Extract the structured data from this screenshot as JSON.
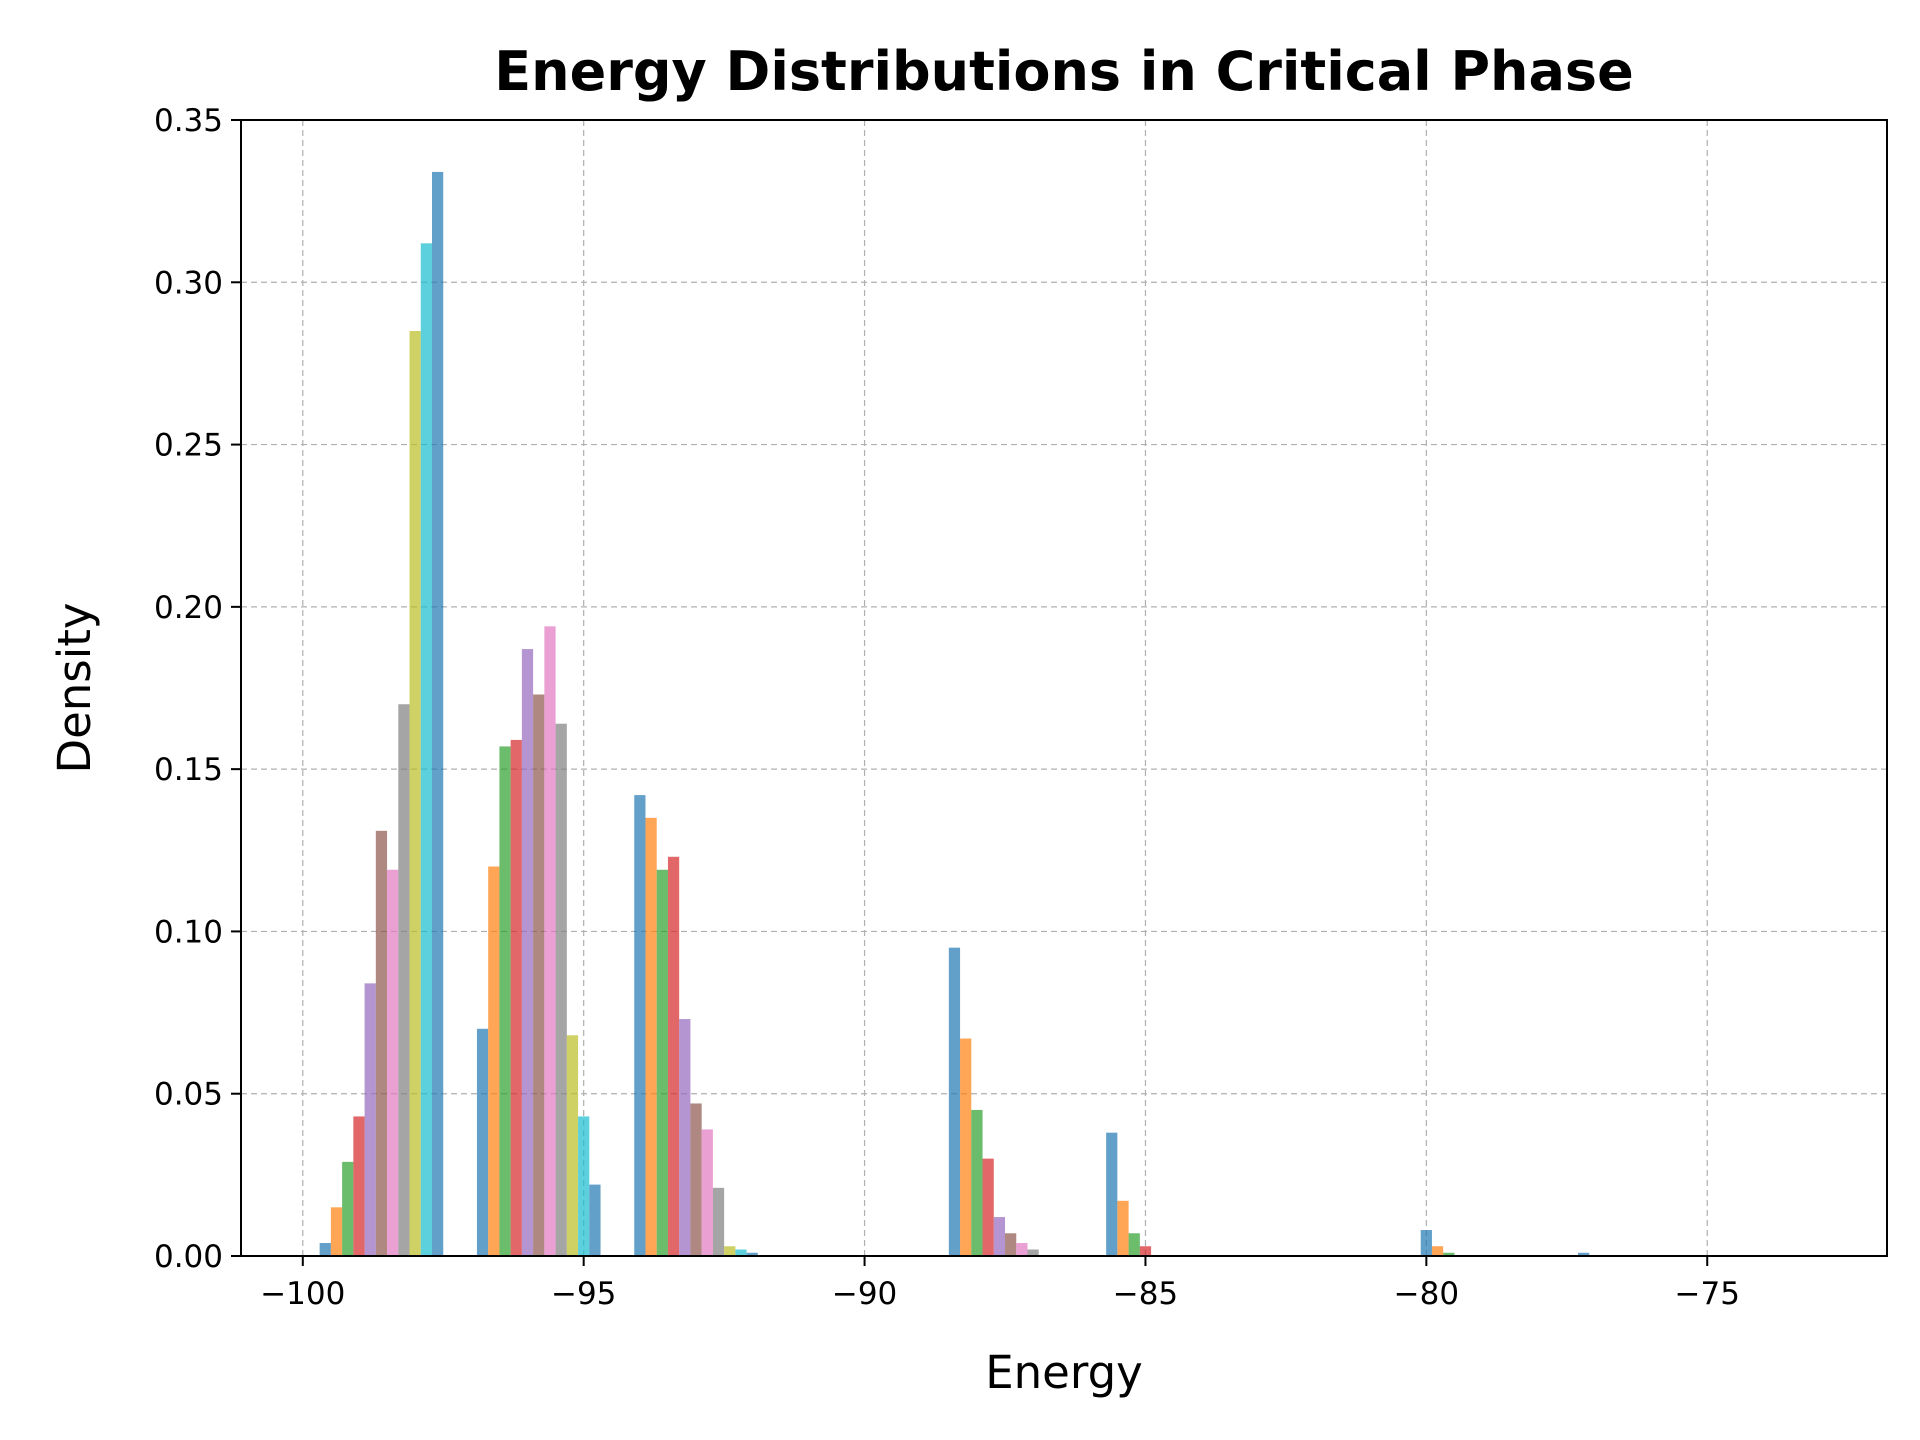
{
  "chart_data": {
    "type": "bar",
    "title": "Energy Distributions in Critical Phase",
    "xlabel": "Energy",
    "ylabel": "Density",
    "xlim": [
      -101.1,
      -71.8
    ],
    "ylim": [
      0,
      0.35
    ],
    "x_ticks": [
      -100,
      -95,
      -90,
      -85,
      -80,
      -75
    ],
    "x_tick_labels": [
      "−100",
      "−95",
      "−90",
      "−85",
      "−80",
      "−75"
    ],
    "y_ticks": [
      0.0,
      0.05,
      0.1,
      0.15,
      0.2,
      0.25,
      0.3,
      0.35
    ],
    "y_tick_labels": [
      "0.00",
      "0.05",
      "0.10",
      "0.15",
      "0.20",
      "0.25",
      "0.30",
      "0.35"
    ],
    "grid": true,
    "bar_opacity": 0.7,
    "bar_width": 0.2,
    "series": [
      {
        "color": "#1f77b4",
        "values": [
          [
            -99.6,
            0.004
          ],
          [
            -96.8,
            0.07
          ],
          [
            -94.0,
            0.142
          ],
          [
            -88.4,
            0.095
          ],
          [
            -85.6,
            0.038
          ],
          [
            -80.0,
            0.008
          ],
          [
            -77.2,
            0.001
          ]
        ]
      },
      {
        "color": "#ff7f0e",
        "values": [
          [
            -99.4,
            0.015
          ],
          [
            -96.6,
            0.12
          ],
          [
            -93.8,
            0.135
          ],
          [
            -88.2,
            0.067
          ],
          [
            -85.4,
            0.017
          ],
          [
            -79.8,
            0.003
          ]
        ]
      },
      {
        "color": "#2ca02c",
        "values": [
          [
            -99.2,
            0.029
          ],
          [
            -96.4,
            0.157
          ],
          [
            -93.6,
            0.119
          ],
          [
            -88.0,
            0.045
          ],
          [
            -85.2,
            0.007
          ],
          [
            -79.6,
            0.001
          ]
        ]
      },
      {
        "color": "#d62728",
        "values": [
          [
            -99.0,
            0.043
          ],
          [
            -96.2,
            0.159
          ],
          [
            -93.4,
            0.123
          ],
          [
            -87.8,
            0.03
          ],
          [
            -85.0,
            0.003
          ]
        ]
      },
      {
        "color": "#9467bd",
        "values": [
          [
            -98.8,
            0.084
          ],
          [
            -96.0,
            0.187
          ],
          [
            -93.2,
            0.073
          ],
          [
            -87.6,
            0.012
          ]
        ]
      },
      {
        "color": "#8c564b",
        "values": [
          [
            -98.6,
            0.131
          ],
          [
            -95.8,
            0.173
          ],
          [
            -93.0,
            0.047
          ],
          [
            -87.4,
            0.007
          ]
        ]
      },
      {
        "color": "#e377c2",
        "values": [
          [
            -98.4,
            0.119
          ],
          [
            -95.6,
            0.194
          ],
          [
            -92.8,
            0.039
          ],
          [
            -87.2,
            0.004
          ]
        ]
      },
      {
        "color": "#7f7f7f",
        "values": [
          [
            -98.2,
            0.17
          ],
          [
            -95.4,
            0.164
          ],
          [
            -92.6,
            0.021
          ],
          [
            -87.0,
            0.002
          ]
        ]
      },
      {
        "color": "#bcbd22",
        "values": [
          [
            -98.0,
            0.285
          ],
          [
            -95.2,
            0.068
          ],
          [
            -92.4,
            0.003
          ]
        ]
      },
      {
        "color": "#17becf",
        "values": [
          [
            -97.8,
            0.312
          ],
          [
            -95.0,
            0.043
          ],
          [
            -92.2,
            0.002
          ]
        ]
      },
      {
        "color": "#1f77b4",
        "values": [
          [
            -97.6,
            0.334
          ],
          [
            -94.8,
            0.022
          ],
          [
            -92.0,
            0.001
          ]
        ]
      }
    ]
  }
}
